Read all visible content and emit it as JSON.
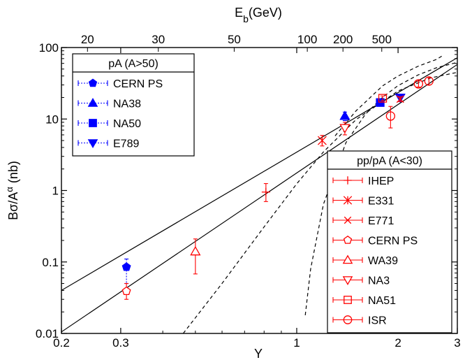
{
  "chart_data": {
    "type": "scatter",
    "title": "",
    "xlabel": "Y",
    "ylabel": "Bσ/A^α (nb)",
    "ylabel_parts": {
      "main": "Bσ/A",
      "sup": "α",
      "unit": " (nb)"
    },
    "top_axis_label": {
      "main": "E",
      "sub": "b",
      "unit": "(GeV)"
    },
    "x_scale": "log",
    "y_scale": "log",
    "xlim": [
      0.2,
      3
    ],
    "ylim": [
      0.01,
      100
    ],
    "x_ticks": [
      0.2,
      0.3,
      1,
      2,
      3
    ],
    "x_tick_labels": [
      "0.2",
      "0.3",
      "1",
      "2",
      "3"
    ],
    "y_ticks": [
      0.01,
      0.1,
      1,
      10,
      100
    ],
    "y_tick_labels": [
      "0.01",
      "0.1",
      "1",
      "10",
      "100"
    ],
    "top_ticks": [
      {
        "label": "20",
        "x": 0.239
      },
      {
        "label": "30",
        "x": 0.388
      },
      {
        "label": "50",
        "x": 0.652
      },
      {
        "label": "100",
        "x": 1.075
      },
      {
        "label": "200",
        "x": 1.372
      },
      {
        "label": "500",
        "x": 1.789
      }
    ],
    "grid": false,
    "legends": [
      {
        "title": "pA (A>50)",
        "placement": "top-left",
        "entries": [
          "CERN PS",
          "NA38",
          "NA50",
          "E789"
        ]
      },
      {
        "title": "pp/pA (A<30)",
        "placement": "bottom-right",
        "entries": [
          "IHEP",
          "E331",
          "E771",
          "CERN PS",
          "WA39",
          "NA3",
          "NA51",
          "ISR"
        ]
      }
    ],
    "series": [
      {
        "name": "CERN PS",
        "group": "pA",
        "marker": "pentagon-filled",
        "color": "#0000ff",
        "points": [
          {
            "x": 0.312,
            "y": 0.085,
            "ylo": 0.05,
            "yhi": 0.11
          }
        ]
      },
      {
        "name": "NA38",
        "group": "pA",
        "marker": "triangle-up-filled",
        "color": "#0000ff",
        "points": [
          {
            "x": 1.39,
            "y": 11,
            "ylo": 9.5,
            "yhi": 12.5
          }
        ]
      },
      {
        "name": "NA50",
        "group": "pA",
        "marker": "square-filled",
        "color": "#0000ff",
        "points": [
          {
            "x": 1.77,
            "y": 17,
            "ylo": 16,
            "yhi": 18
          }
        ]
      },
      {
        "name": "E789",
        "group": "pA",
        "marker": "triangle-down-filled",
        "color": "#0000ff",
        "points": [
          {
            "x": 2.03,
            "y": 20,
            "ylo": 18,
            "yhi": 22
          }
        ]
      },
      {
        "name": "IHEP",
        "group": "pp",
        "marker": "plus",
        "color": "#ff0000",
        "points": [
          {
            "x": 0.81,
            "y": 0.95,
            "ylo": 0.7,
            "yhi": 1.25
          }
        ]
      },
      {
        "name": "E331",
        "group": "pp",
        "marker": "asterisk",
        "color": "#ff0000",
        "points": [
          {
            "x": 1.19,
            "y": 5,
            "ylo": 4.2,
            "yhi": 5.9
          }
        ]
      },
      {
        "name": "E771",
        "group": "pp",
        "marker": "x",
        "color": "#ff0000",
        "points": [
          {
            "x": 2.03,
            "y": 19,
            "ylo": 17.5,
            "yhi": 20.5
          }
        ]
      },
      {
        "name": "CERN PS",
        "group": "pp",
        "marker": "pentagon-open",
        "color": "#ff0000",
        "points": [
          {
            "x": 0.312,
            "y": 0.039,
            "ylo": 0.03,
            "yhi": 0.05
          }
        ]
      },
      {
        "name": "WA39",
        "group": "pp",
        "marker": "triangle-up-open",
        "color": "#ff0000",
        "points": [
          {
            "x": 0.5,
            "y": 0.14,
            "ylo": 0.068,
            "yhi": 0.21
          }
        ]
      },
      {
        "name": "NA3",
        "group": "pp",
        "marker": "triangle-down-open",
        "color": "#ff0000",
        "points": [
          {
            "x": 1.39,
            "y": 7.5,
            "ylo": 6,
            "yhi": 9
          }
        ]
      },
      {
        "name": "NA51",
        "group": "pp",
        "marker": "square-open",
        "color": "#ff0000",
        "points": [
          {
            "x": 1.8,
            "y": 19.5,
            "ylo": 18,
            "yhi": 21
          }
        ]
      },
      {
        "name": "ISR",
        "group": "pp",
        "marker": "circle-open",
        "color": "#ff0000",
        "points": [
          {
            "x": 1.9,
            "y": 11,
            "ylo": 7.5,
            "yhi": 15
          },
          {
            "x": 2.3,
            "y": 31,
            "ylo": 28,
            "yhi": 34
          },
          {
            "x": 2.47,
            "y": 34,
            "ylo": 30,
            "yhi": 38
          }
        ]
      }
    ],
    "curves": [
      {
        "name": "",
        "style": "solid",
        "points": [
          [
            0.2,
            0.04
          ],
          [
            3,
            72
          ]
        ]
      },
      {
        "name": "",
        "style": "solid",
        "points": [
          [
            0.2,
            0.0105
          ],
          [
            3,
            58
          ]
        ]
      },
      {
        "name": "",
        "style": "dashed",
        "points": [
          [
            0.46,
            0.01
          ],
          [
            0.6,
            0.05
          ],
          [
            0.8,
            0.31
          ],
          [
            1.0,
            1.24
          ],
          [
            1.2,
            3.46
          ],
          [
            1.5,
            9.8
          ],
          [
            2.0,
            24.7
          ],
          [
            2.5,
            37.6
          ],
          [
            3.0,
            45
          ]
        ]
      },
      {
        "name": "",
        "style": "dashed",
        "points": [
          [
            1.06,
            0.018
          ],
          [
            1.1,
            0.08
          ],
          [
            1.2,
            0.64
          ],
          [
            1.4,
            4.67
          ],
          [
            1.6,
            11.7
          ],
          [
            1.8,
            20.2
          ],
          [
            2.0,
            29.3
          ],
          [
            2.3,
            41.6
          ],
          [
            2.6,
            52.0
          ],
          [
            3.0,
            62.0
          ]
        ]
      },
      {
        "name": "",
        "style": "dashed",
        "points": [
          [
            1.3,
            5.8
          ],
          [
            1.5,
            13.0
          ],
          [
            1.8,
            29.1
          ],
          [
            2.0,
            40
          ],
          [
            2.3,
            55
          ],
          [
            2.6,
            68
          ],
          [
            2.7,
            76
          ]
        ]
      }
    ]
  }
}
